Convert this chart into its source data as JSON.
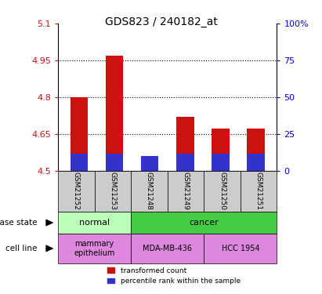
{
  "title": "GDS823 / 240182_at",
  "samples": [
    "GSM21252",
    "GSM21253",
    "GSM21248",
    "GSM21249",
    "GSM21250",
    "GSM21251"
  ],
  "red_values": [
    4.8,
    4.97,
    4.52,
    4.72,
    4.67,
    4.67
  ],
  "blue_values": [
    4.57,
    4.57,
    4.56,
    4.57,
    4.57,
    4.57
  ],
  "base": 4.5,
  "ylim": [
    4.5,
    5.1
  ],
  "yticks_left": [
    4.5,
    4.65,
    4.8,
    4.95,
    5.1
  ],
  "yticks_right": [
    0,
    25,
    50,
    75,
    100
  ],
  "bar_width": 0.5,
  "red_color": "#cc1111",
  "blue_color": "#3333cc",
  "legend_items": [
    "transformed count",
    "percentile rank within the sample"
  ],
  "grid_yticks": [
    4.65,
    4.8,
    4.95
  ],
  "axis_label_color_left": "#cc1111",
  "axis_label_color_right": "#0000cc",
  "sample_area_color": "#cccccc",
  "normal_color": "#bbffbb",
  "cancer_color": "#44cc44",
  "cell_color": "#dd88dd"
}
